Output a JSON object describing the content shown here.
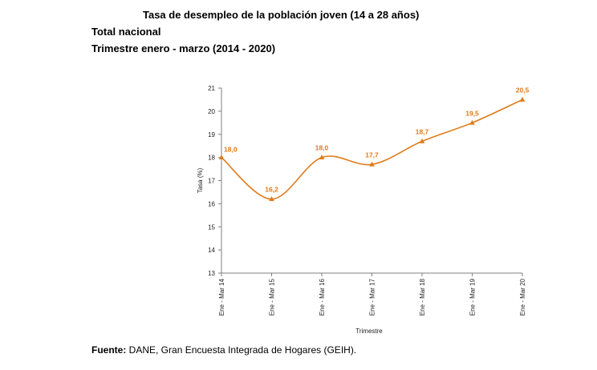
{
  "header": {
    "title": "Tasa de desempleo de la población joven (14 a 28 años)",
    "subtitle1": "Total nacional",
    "subtitle2": "Trimestre enero - marzo (2014 - 2020)"
  },
  "footer": {
    "source_label": "Fuente:",
    "source_text": " DANE, Gran Encuesta Integrada de Hogares (GEIH)."
  },
  "colors": {
    "series": "#e07b1a",
    "axis": "#7f7f7f"
  },
  "chart_data": {
    "type": "line",
    "smooth": true,
    "title": "Tasa de desempleo de la población joven (14 a 28 años)",
    "xlabel": "Trimestre",
    "ylabel": "Tasa (%)",
    "ylim": [
      13,
      21
    ],
    "yticks": [
      13,
      14,
      15,
      16,
      17,
      18,
      19,
      20,
      21
    ],
    "grid": false,
    "categories": [
      "Ene - Mar 14",
      "Ene - Mar 15",
      "Ene - Mar 16",
      "Ene - Mar 17",
      "Ene - Mar 18",
      "Ene - Mar 19",
      "Ene - Mar 20"
    ],
    "series": [
      {
        "values": [
          18.0,
          16.2,
          18.0,
          17.7,
          18.7,
          19.5,
          20.5
        ],
        "labels": [
          "18,0",
          "16,2",
          "18,0",
          "17,7",
          "18,7",
          "19,5",
          "20,5"
        ]
      }
    ]
  }
}
